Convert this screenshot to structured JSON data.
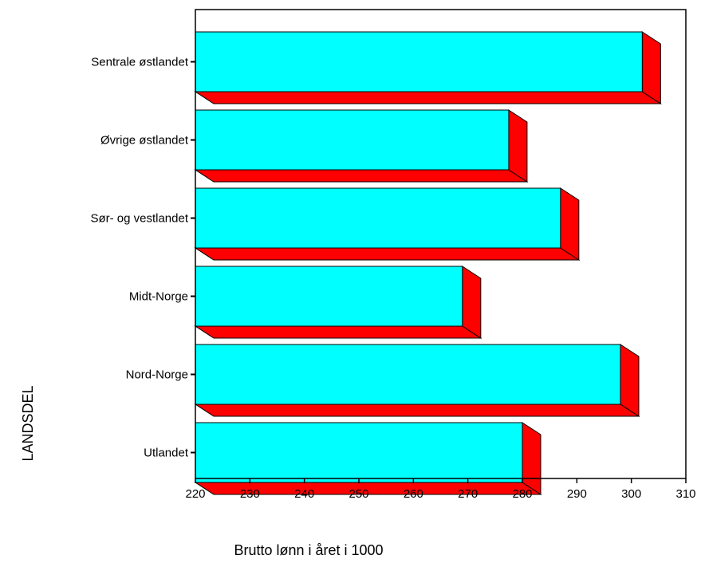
{
  "chart_data": {
    "type": "bar",
    "orientation": "horizontal",
    "categories": [
      "Sentrale østlandet",
      "Øvrige østlandet",
      "Sør- og vestlandet",
      "Midt-Norge",
      "Nord-Norge",
      "Utlandet"
    ],
    "values": [
      302,
      277.5,
      287,
      269,
      298,
      280
    ],
    "xlabel": "Brutto lønn i året i 1000",
    "ylabel": "LANDSDEL",
    "xlim": [
      220,
      310
    ],
    "xticks": [
      220,
      230,
      240,
      250,
      260,
      270,
      280,
      290,
      300,
      310
    ],
    "grid": false,
    "legend": "none",
    "style": "3d",
    "colors": {
      "bar_face": "#00ffff",
      "bar_side": "#ff0000",
      "outline": "#000000"
    }
  }
}
